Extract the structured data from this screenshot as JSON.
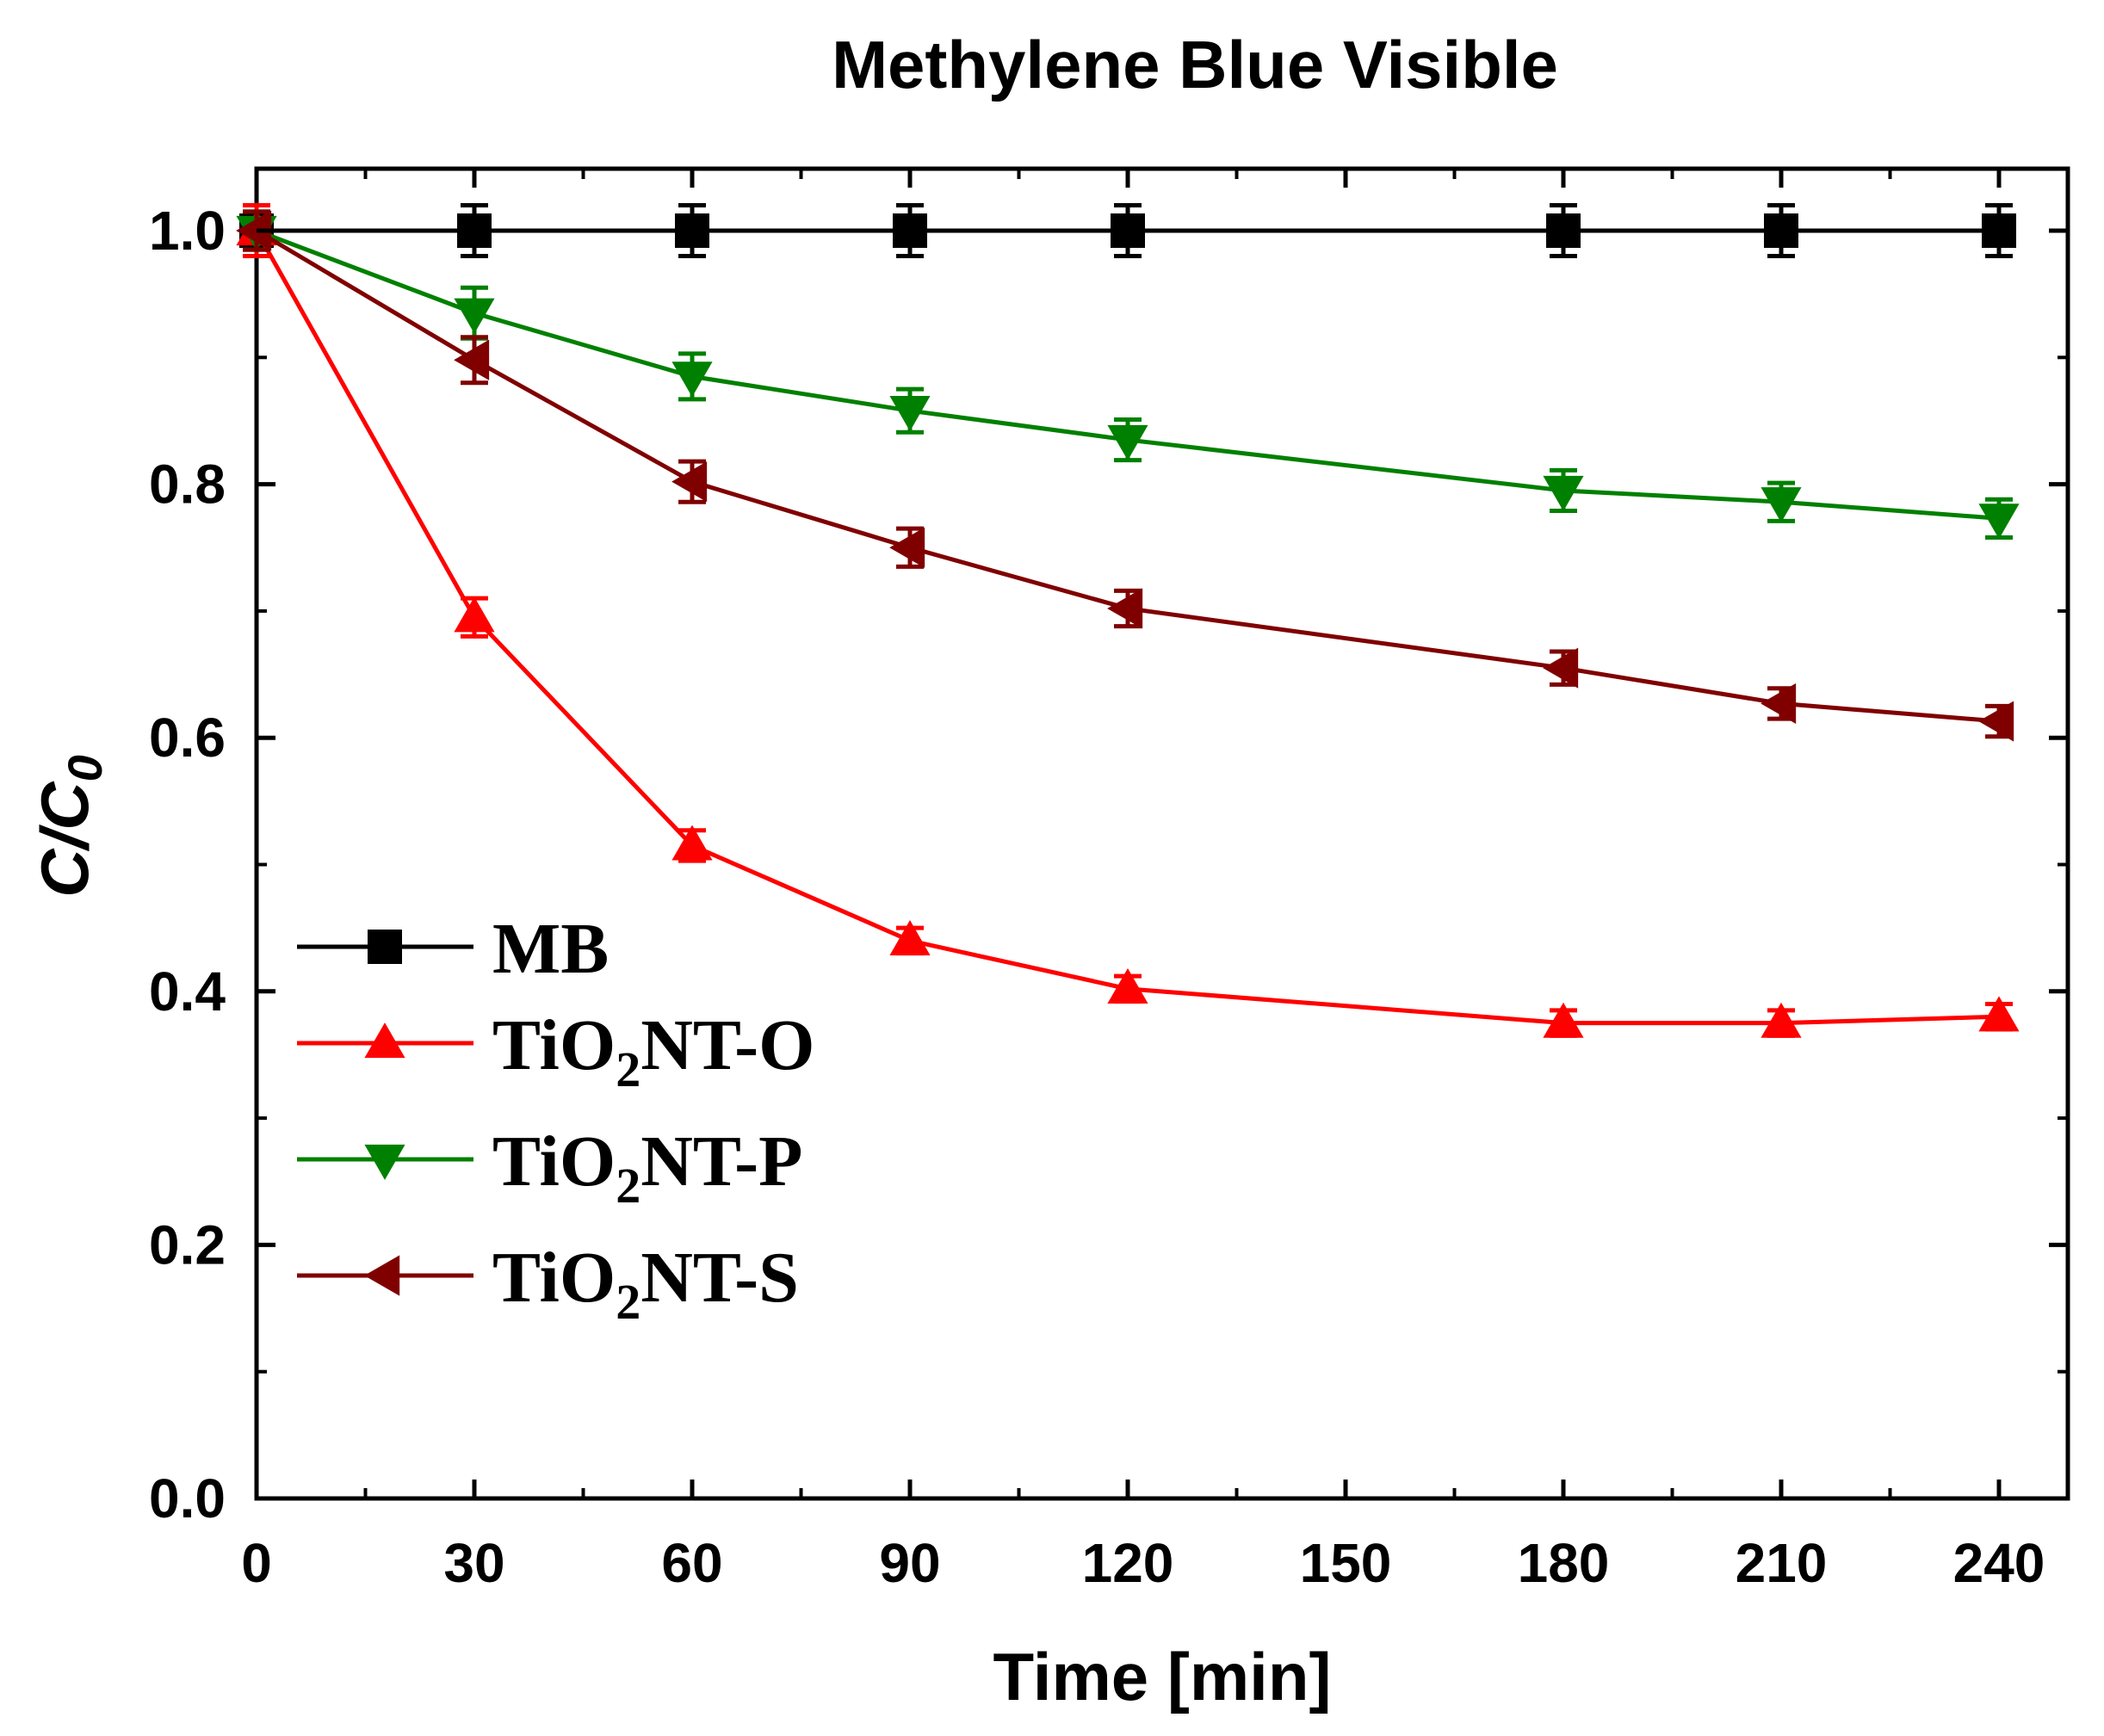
{
  "chart_data": {
    "type": "line",
    "title": "Methylene Blue Visible",
    "xlabel": "Time [min]",
    "ylabel": {
      "main": "C/C",
      "sub": "0"
    },
    "xlim": [
      0,
      250
    ],
    "ylim": [
      0,
      1.05
    ],
    "x_ticks": [
      0,
      30,
      60,
      90,
      120,
      150,
      180,
      210,
      240
    ],
    "x_tick_labels": [
      "0",
      "30",
      "60",
      "90",
      "120",
      "150",
      "180",
      "210",
      "240"
    ],
    "y_ticks": [
      0.0,
      0.2,
      0.4,
      0.6,
      0.8,
      1.0
    ],
    "y_tick_labels": [
      "0.0",
      "0.2",
      "0.4",
      "0.6",
      "0.8",
      "1.0"
    ],
    "grid": false,
    "legend_position": "lower-left",
    "x": [
      0,
      30,
      60,
      90,
      120,
      180,
      210,
      240
    ],
    "series": [
      {
        "name": "MB",
        "legend": {
          "prefix": "MB",
          "sub": "",
          "suffix": ""
        },
        "color": "#000000",
        "marker": "square",
        "values": [
          1.0,
          1.0,
          1.0,
          1.0,
          1.0,
          1.0,
          1.0,
          1.0
        ],
        "errors": [
          0.02,
          0.02,
          0.02,
          0.02,
          0.02,
          0.02,
          0.02,
          0.02
        ]
      },
      {
        "name": "TiO2NT-O",
        "legend": {
          "prefix": "TiO",
          "sub": "2",
          "suffix": "NT-O"
        },
        "color": "#ff0000",
        "marker": "triangle-up",
        "values": [
          1.0,
          0.695,
          0.515,
          0.44,
          0.402,
          0.375,
          0.375,
          0.38
        ],
        "errors": [
          0.02,
          0.015,
          0.012,
          0.01,
          0.01,
          0.01,
          0.01,
          0.01
        ]
      },
      {
        "name": "TiO2NT-P",
        "legend": {
          "prefix": "TiO",
          "sub": "2",
          "suffix": "NT-P"
        },
        "color": "#008000",
        "marker": "triangle-down",
        "values": [
          1.0,
          0.935,
          0.885,
          0.858,
          0.835,
          0.795,
          0.786,
          0.773
        ],
        "errors": [
          0.015,
          0.02,
          0.018,
          0.017,
          0.016,
          0.016,
          0.015,
          0.015
        ]
      },
      {
        "name": "TiO2NT-S",
        "legend": {
          "prefix": "TiO",
          "sub": "2",
          "suffix": "NT-S"
        },
        "color": "#800000",
        "marker": "triangle-left",
        "values": [
          1.0,
          0.898,
          0.802,
          0.75,
          0.702,
          0.655,
          0.627,
          0.613
        ],
        "errors": [
          0.015,
          0.018,
          0.016,
          0.015,
          0.014,
          0.013,
          0.012,
          0.012
        ]
      }
    ]
  }
}
